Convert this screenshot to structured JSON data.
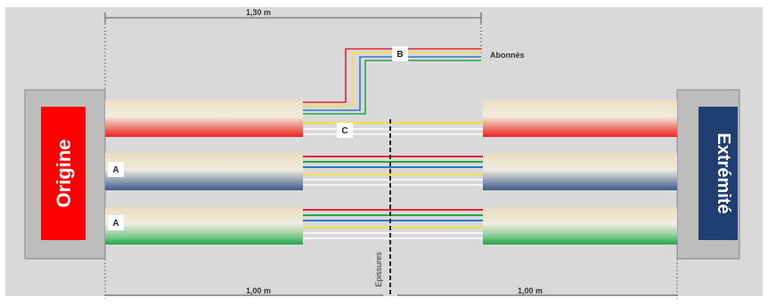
{
  "dimensions": {
    "top": "1,30 m",
    "bottom_left": "1,00 m",
    "bottom_right": "1,00 m"
  },
  "labels": {
    "origin": "Origine",
    "end": "Extrémité",
    "subscribers": "Abonnés",
    "splices": "Epissures",
    "cable_a1": "A",
    "cable_a2": "A",
    "branch_b": "B",
    "branch_c": "C"
  },
  "colors": {
    "background": "#d9d9d9",
    "origin_box": "#ff0000",
    "end_box": "#1f3f73",
    "cable_red": "#e8222b",
    "cable_blue": "#3e5b8a",
    "cable_green": "#1fa34a",
    "fiber_red": "#e8222b",
    "fiber_green": "#22a84a",
    "fiber_blue": "#2e78c8",
    "fiber_yellow": "#f0e040",
    "fiber_white": "#f4f4f4"
  }
}
